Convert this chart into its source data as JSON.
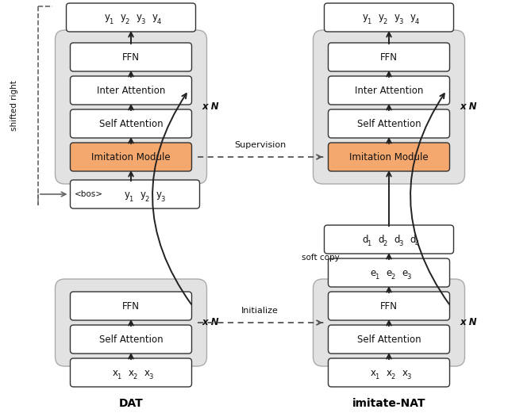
{
  "fig_width": 6.4,
  "fig_height": 5.21,
  "bg_color": "#ffffff",
  "box_bg_white": "#ffffff",
  "box_bg_orange": "#f5a86e",
  "box_stroke": "#333333",
  "group_bg": "#e2e2e2",
  "group_stroke": "#aaaaaa",
  "text_color": "#111111",
  "arrow_color": "#222222",
  "dashed_color": "#555555",
  "font_size_box": 8.5,
  "font_size_label": 8,
  "font_size_title": 10,
  "font_size_subscript": 6,
  "font_size_xN": 8.5,
  "DAT_label": "DAT",
  "NAT_label": "imitate-NAT",
  "supervision_label": "Supervision",
  "initialize_label": "Initialize"
}
